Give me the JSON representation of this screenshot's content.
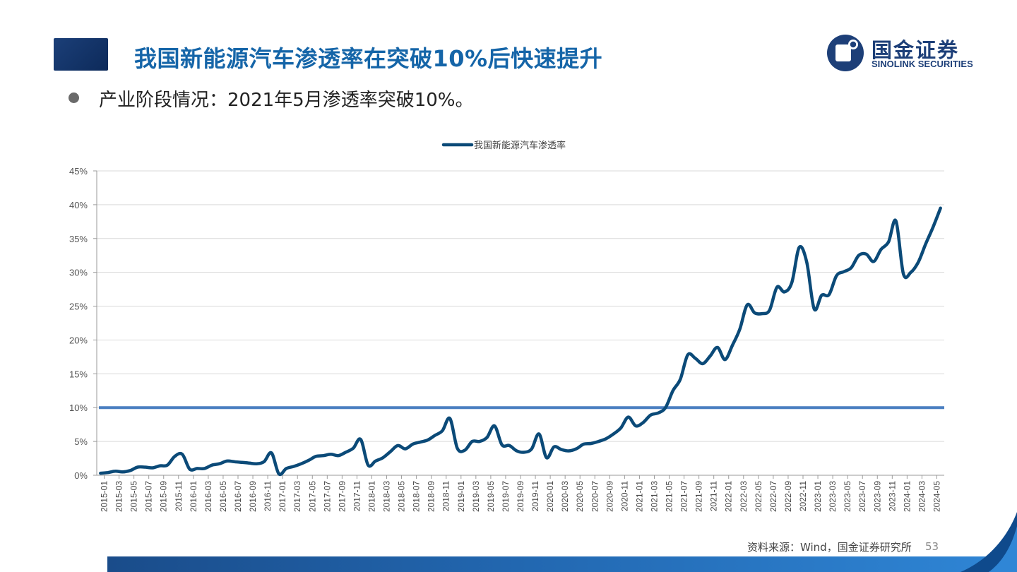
{
  "slide": {
    "title": "我国新能源汽车渗透率在突破10%后快速提升",
    "bullet": "产业阶段情况：2021年5月渗透率突破10%。",
    "source": "资料来源：Wind，国金证券研究所",
    "page_number": "53"
  },
  "logo": {
    "name_cn": "国金证券",
    "name_en": "SINOLINK SECURITIES"
  },
  "colors": {
    "title": "#1565a8",
    "series_line": "#0b4a78",
    "threshold_line": "#4a7fc1",
    "grid": "#d9d9d9",
    "brand_dark": "#1d3f78"
  },
  "chart_data": {
    "type": "line",
    "title": "",
    "xlabel": "",
    "ylabel": "",
    "ylim": [
      0,
      45
    ],
    "y_ticks": [
      "0%",
      "5%",
      "10%",
      "15%",
      "20%",
      "25%",
      "30%",
      "35%",
      "40%",
      "45%"
    ],
    "grid": "horizontal",
    "legend_position": "top-center",
    "x_ticks": [
      "2015-01",
      "2015-03",
      "2015-05",
      "2015-07",
      "2015-09",
      "2015-11",
      "2016-01",
      "2016-03",
      "2016-05",
      "2016-07",
      "2016-09",
      "2016-11",
      "2017-01",
      "2017-03",
      "2017-05",
      "2017-07",
      "2017-09",
      "2017-11",
      "2018-01",
      "2018-03",
      "2018-05",
      "2018-07",
      "2018-09",
      "2018-11",
      "2019-01",
      "2019-03",
      "2019-05",
      "2019-07",
      "2019-09",
      "2019-11",
      "2020-01",
      "2020-03",
      "2020-05",
      "2020-07",
      "2020-09",
      "2020-11",
      "2021-01",
      "2021-03",
      "2021-05",
      "2021-07",
      "2021-09",
      "2021-11",
      "2022-01",
      "2022-03",
      "2022-05",
      "2022-07",
      "2022-09",
      "2022-11",
      "2023-01",
      "2023-03",
      "2023-05",
      "2023-07",
      "2023-09",
      "2023-11",
      "2024-01",
      "2024-03",
      "2024-05"
    ],
    "series": [
      {
        "name": "我国新能源汽车渗透率",
        "values": [
          0.3,
          0.4,
          0.6,
          0.5,
          0.7,
          1.2,
          1.2,
          1.1,
          1.4,
          1.5,
          2.8,
          3.1,
          0.9,
          1.0,
          1.0,
          1.5,
          1.7,
          2.1,
          2.0,
          1.9,
          1.8,
          1.7,
          2.0,
          3.3,
          0.2,
          1.0,
          1.3,
          1.7,
          2.2,
          2.8,
          2.9,
          3.1,
          2.9,
          3.4,
          4.0,
          5.3,
          1.5,
          2.1,
          2.6,
          3.5,
          4.4,
          3.9,
          4.6,
          4.9,
          5.2,
          5.9,
          6.6,
          8.4,
          4.0,
          3.7,
          5.0,
          5.0,
          5.6,
          7.3,
          4.5,
          4.4,
          3.6,
          3.4,
          3.9,
          6.1,
          2.6,
          4.2,
          3.8,
          3.6,
          3.9,
          4.6,
          4.7,
          5.0,
          5.4,
          6.1,
          7.0,
          8.6,
          7.3,
          7.8,
          8.9,
          9.2,
          10.0,
          12.5,
          14.2,
          17.8,
          17.3,
          16.5,
          17.6,
          18.9,
          17.1,
          19.2,
          21.6,
          25.2,
          24.0,
          23.9,
          24.4,
          27.8,
          27.1,
          28.5,
          33.7,
          31.5,
          24.6,
          26.6,
          26.7,
          29.5,
          30.1,
          30.7,
          32.5,
          32.7,
          31.6,
          33.4,
          34.5,
          37.6,
          29.8,
          30.0,
          31.5,
          34.2,
          36.7,
          39.5
        ]
      }
    ],
    "reference_lines": [
      {
        "label": "10%",
        "value": 10
      }
    ]
  }
}
